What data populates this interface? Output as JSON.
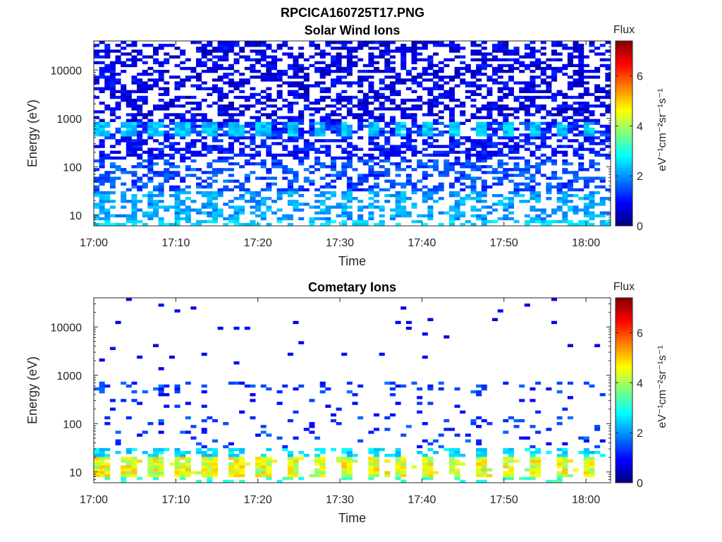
{
  "figure_title": "RPCICA160725T17.PNG",
  "chart_data": [
    {
      "type": "heatmap",
      "title": "Solar Wind Ions",
      "xlabel": "Time",
      "ylabel": "Energy (eV)",
      "x_ticks": [
        "17:00",
        "17:10",
        "17:20",
        "17:30",
        "17:40",
        "17:50",
        "18:00"
      ],
      "x_range": [
        "17:00",
        "18:03"
      ],
      "y_scale": "log",
      "y_ticks": [
        10,
        100,
        1000,
        10000
      ],
      "y_tick_labels": [
        "10",
        "100",
        "1000",
        "10000"
      ],
      "y_range": [
        6,
        40000
      ],
      "colorbar": {
        "title": "Flux",
        "label": "eV⁻¹cm⁻²sr⁻¹s⁻¹",
        "range": [
          0,
          7.4
        ],
        "ticks": [
          0,
          2,
          4,
          6
        ],
        "tick_labels": [
          "0",
          "2",
          "4",
          "6"
        ],
        "colormap": "jet"
      },
      "features": [
        {
          "energy_range_eV": [
            6,
            8
          ],
          "typical_flux": 2.3
        },
        {
          "energy_range_eV": [
            8,
            30
          ],
          "typical_flux": 2.0
        },
        {
          "energy_range_eV": [
            30,
            150
          ],
          "typical_flux": 1.5
        },
        {
          "energy_range_eV": [
            400,
            800
          ],
          "typical_flux": 2.3
        },
        {
          "energy_range_eV": [
            800,
            40000
          ],
          "typical_flux": 0.7
        }
      ]
    },
    {
      "type": "heatmap",
      "title": "Cometary Ions",
      "xlabel": "Time",
      "ylabel": "Energy (eV)",
      "x_ticks": [
        "17:00",
        "17:10",
        "17:20",
        "17:30",
        "17:40",
        "17:50",
        "18:00"
      ],
      "x_range": [
        "17:00",
        "18:03"
      ],
      "y_scale": "log",
      "y_ticks": [
        10,
        100,
        1000,
        10000
      ],
      "y_tick_labels": [
        "10",
        "100",
        "1000",
        "10000"
      ],
      "y_range": [
        6,
        40000
      ],
      "colorbar": {
        "title": "Flux",
        "label": "eV⁻¹cm⁻²sr⁻¹s⁻¹",
        "range": [
          0,
          7.4
        ],
        "ticks": [
          0,
          2,
          4,
          6
        ],
        "tick_labels": [
          "0",
          "2",
          "4",
          "6"
        ],
        "colormap": "jet"
      },
      "features": [
        {
          "energy_range_eV": [
            8,
            22
          ],
          "typical_flux": 4.3
        },
        {
          "energy_range_eV": [
            22,
            30
          ],
          "typical_flux": 2.5
        },
        {
          "energy_range_eV": [
            30,
            150
          ],
          "typical_flux": 1.0
        },
        {
          "energy_range_eV": [
            400,
            700
          ],
          "typical_flux": 1.2
        },
        {
          "energy_range_eV": [
            700,
            40000
          ],
          "typical_flux": 0.6
        }
      ]
    }
  ]
}
